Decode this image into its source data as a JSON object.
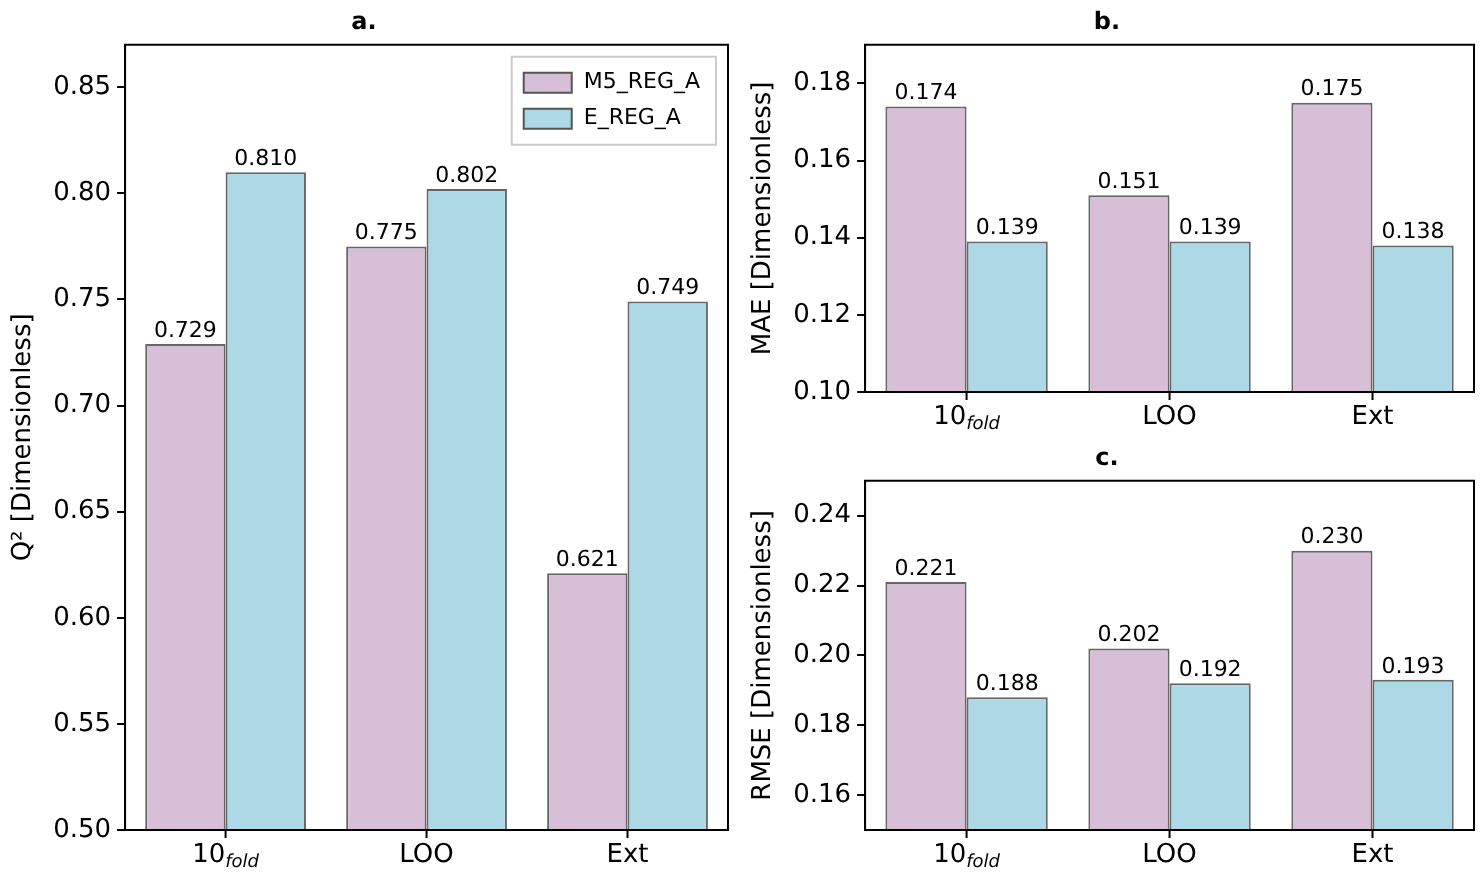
{
  "chart_data": [
    {
      "type": "bar",
      "title": "a.",
      "ylabel": "Q² [Dimensionless]",
      "categories": [
        "10$_{fold}$",
        "LOO",
        "Ext"
      ],
      "legend": "top right",
      "grid": false,
      "ylim": [
        0.5,
        0.87
      ],
      "yticks": [
        {
          "value": 0.5,
          "label": "0.50"
        },
        0.55,
        {
          "value": 0.6,
          "label": "0.60"
        },
        0.65,
        {
          "value": 0.7,
          "label": "0.70"
        },
        0.75,
        {
          "value": 0.8,
          "label": "0.80"
        },
        0.85
      ],
      "series": [
        {
          "name": "M5_REG_A",
          "color": "#d8bfd8",
          "values": [
            0.729,
            0.775,
            0.621
          ],
          "value_labels": [
            "0.729",
            "0.775",
            "0.621"
          ]
        },
        {
          "name": "E_REG_A",
          "color": "#add8e6",
          "values": [
            0.81,
            0.802,
            0.749
          ],
          "value_labels": [
            "0.810",
            "0.802",
            "0.749"
          ]
        }
      ]
    },
    {
      "type": "bar",
      "title": "b.",
      "ylabel": "MAE [Dimensionless]",
      "categories": [
        "10$_{fold}$",
        "LOO",
        "Ext"
      ],
      "grid": false,
      "ylim": [
        0.1,
        0.19
      ],
      "yticks": [
        {
          "value": 0.1,
          "label": "0.10"
        },
        0.12,
        0.14,
        0.16,
        0.18
      ],
      "series": [
        {
          "color": "#d8bfd8",
          "values": [
            0.174,
            0.151,
            0.175
          ],
          "value_labels": [
            "0.174",
            "0.151",
            "0.175"
          ]
        },
        {
          "color": "#add8e6",
          "values": [
            0.139,
            0.139,
            0.138
          ],
          "value_labels": [
            "0.139",
            "0.139",
            "0.138"
          ]
        }
      ]
    },
    {
      "type": "bar",
      "title": "c.",
      "ylabel": "RMSE [Dimensionless]",
      "categories": [
        "10$_{fold}$",
        "LOO",
        "Ext"
      ],
      "grid": false,
      "ylim": [
        0.15,
        0.25
      ],
      "yticks": [
        0.16,
        0.18,
        {
          "value": 0.2,
          "label": "0.20"
        },
        0.22,
        0.24
      ],
      "series": [
        {
          "color": "#d8bfd8",
          "values": [
            0.221,
            0.202,
            0.23
          ],
          "value_labels": [
            "0.221",
            "0.202",
            "0.230"
          ]
        },
        {
          "color": "#add8e6",
          "values": [
            0.188,
            0.192,
            0.193
          ],
          "value_labels": [
            "0.188",
            "0.192",
            "0.193"
          ]
        }
      ]
    }
  ]
}
